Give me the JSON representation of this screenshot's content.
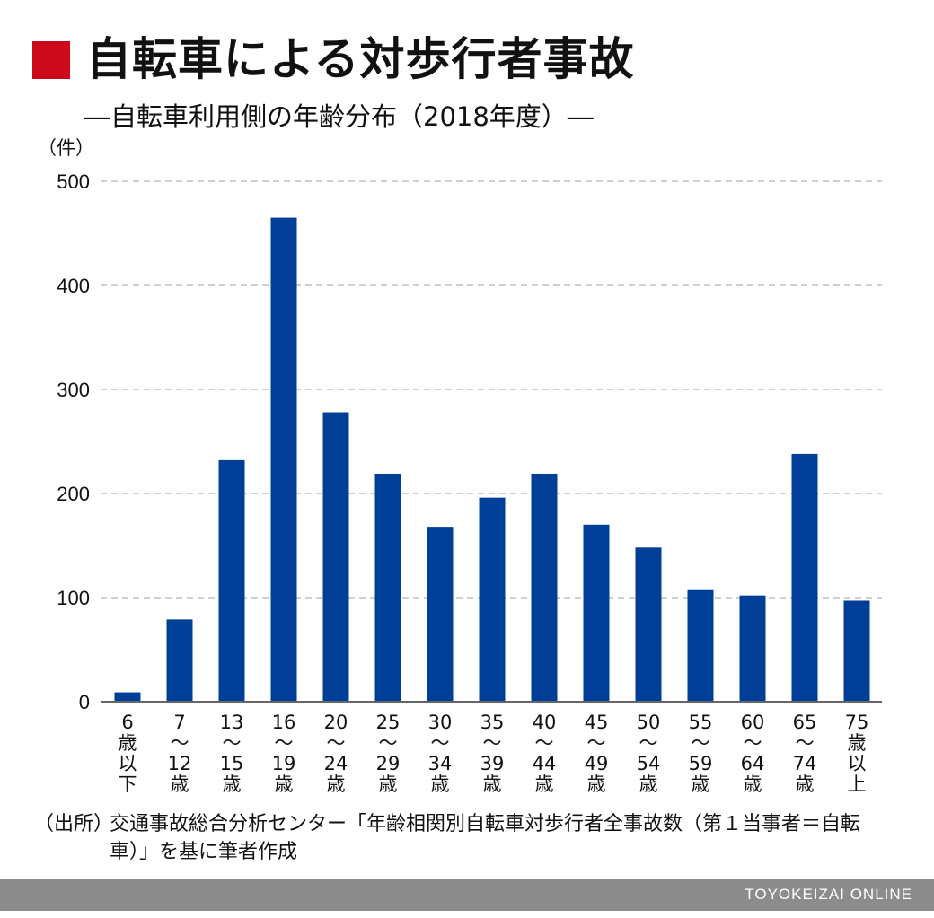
{
  "header": {
    "title": "自転車による対歩行者事故",
    "subtitle": "―自転車利用側の年齢分布（2018年度）―"
  },
  "chart_data": {
    "type": "bar",
    "unit_label": "（件）",
    "categories": [
      [
        "6",
        "歳",
        "以",
        "下"
      ],
      [
        "7",
        "〜",
        "12",
        "歳"
      ],
      [
        "13",
        "〜",
        "15",
        "歳"
      ],
      [
        "16",
        "〜",
        "19",
        "歳"
      ],
      [
        "20",
        "〜",
        "24",
        "歳"
      ],
      [
        "25",
        "〜",
        "29",
        "歳"
      ],
      [
        "30",
        "〜",
        "34",
        "歳"
      ],
      [
        "35",
        "〜",
        "39",
        "歳"
      ],
      [
        "40",
        "〜",
        "44",
        "歳"
      ],
      [
        "45",
        "〜",
        "49",
        "歳"
      ],
      [
        "50",
        "〜",
        "54",
        "歳"
      ],
      [
        "55",
        "〜",
        "59",
        "歳"
      ],
      [
        "60",
        "〜",
        "64",
        "歳"
      ],
      [
        "65",
        "〜",
        "74",
        "歳"
      ],
      [
        "75",
        "歳",
        "以",
        "上"
      ]
    ],
    "values": [
      9,
      79,
      232,
      465,
      278,
      219,
      168,
      196,
      219,
      170,
      148,
      108,
      102,
      238,
      97
    ],
    "ylim": [
      0,
      500
    ],
    "yticks": [
      "0",
      "100",
      "200",
      "300",
      "400",
      "500"
    ],
    "grid": "horizontal-dashed",
    "bar_color": "#003f98",
    "grid_color": "#bfbfbf"
  },
  "source": {
    "label": "（出所）",
    "text": "交通事故総合分析センター「年齢相関別自転車対歩行者全事故数（第１当事者＝自転車）」を基に筆者作成"
  },
  "footer": {
    "brand": "TOYOKEIZAI ONLINE"
  },
  "colors": {
    "title_square": "#cc0a1c",
    "footer_bar": "#8c8c8c"
  }
}
